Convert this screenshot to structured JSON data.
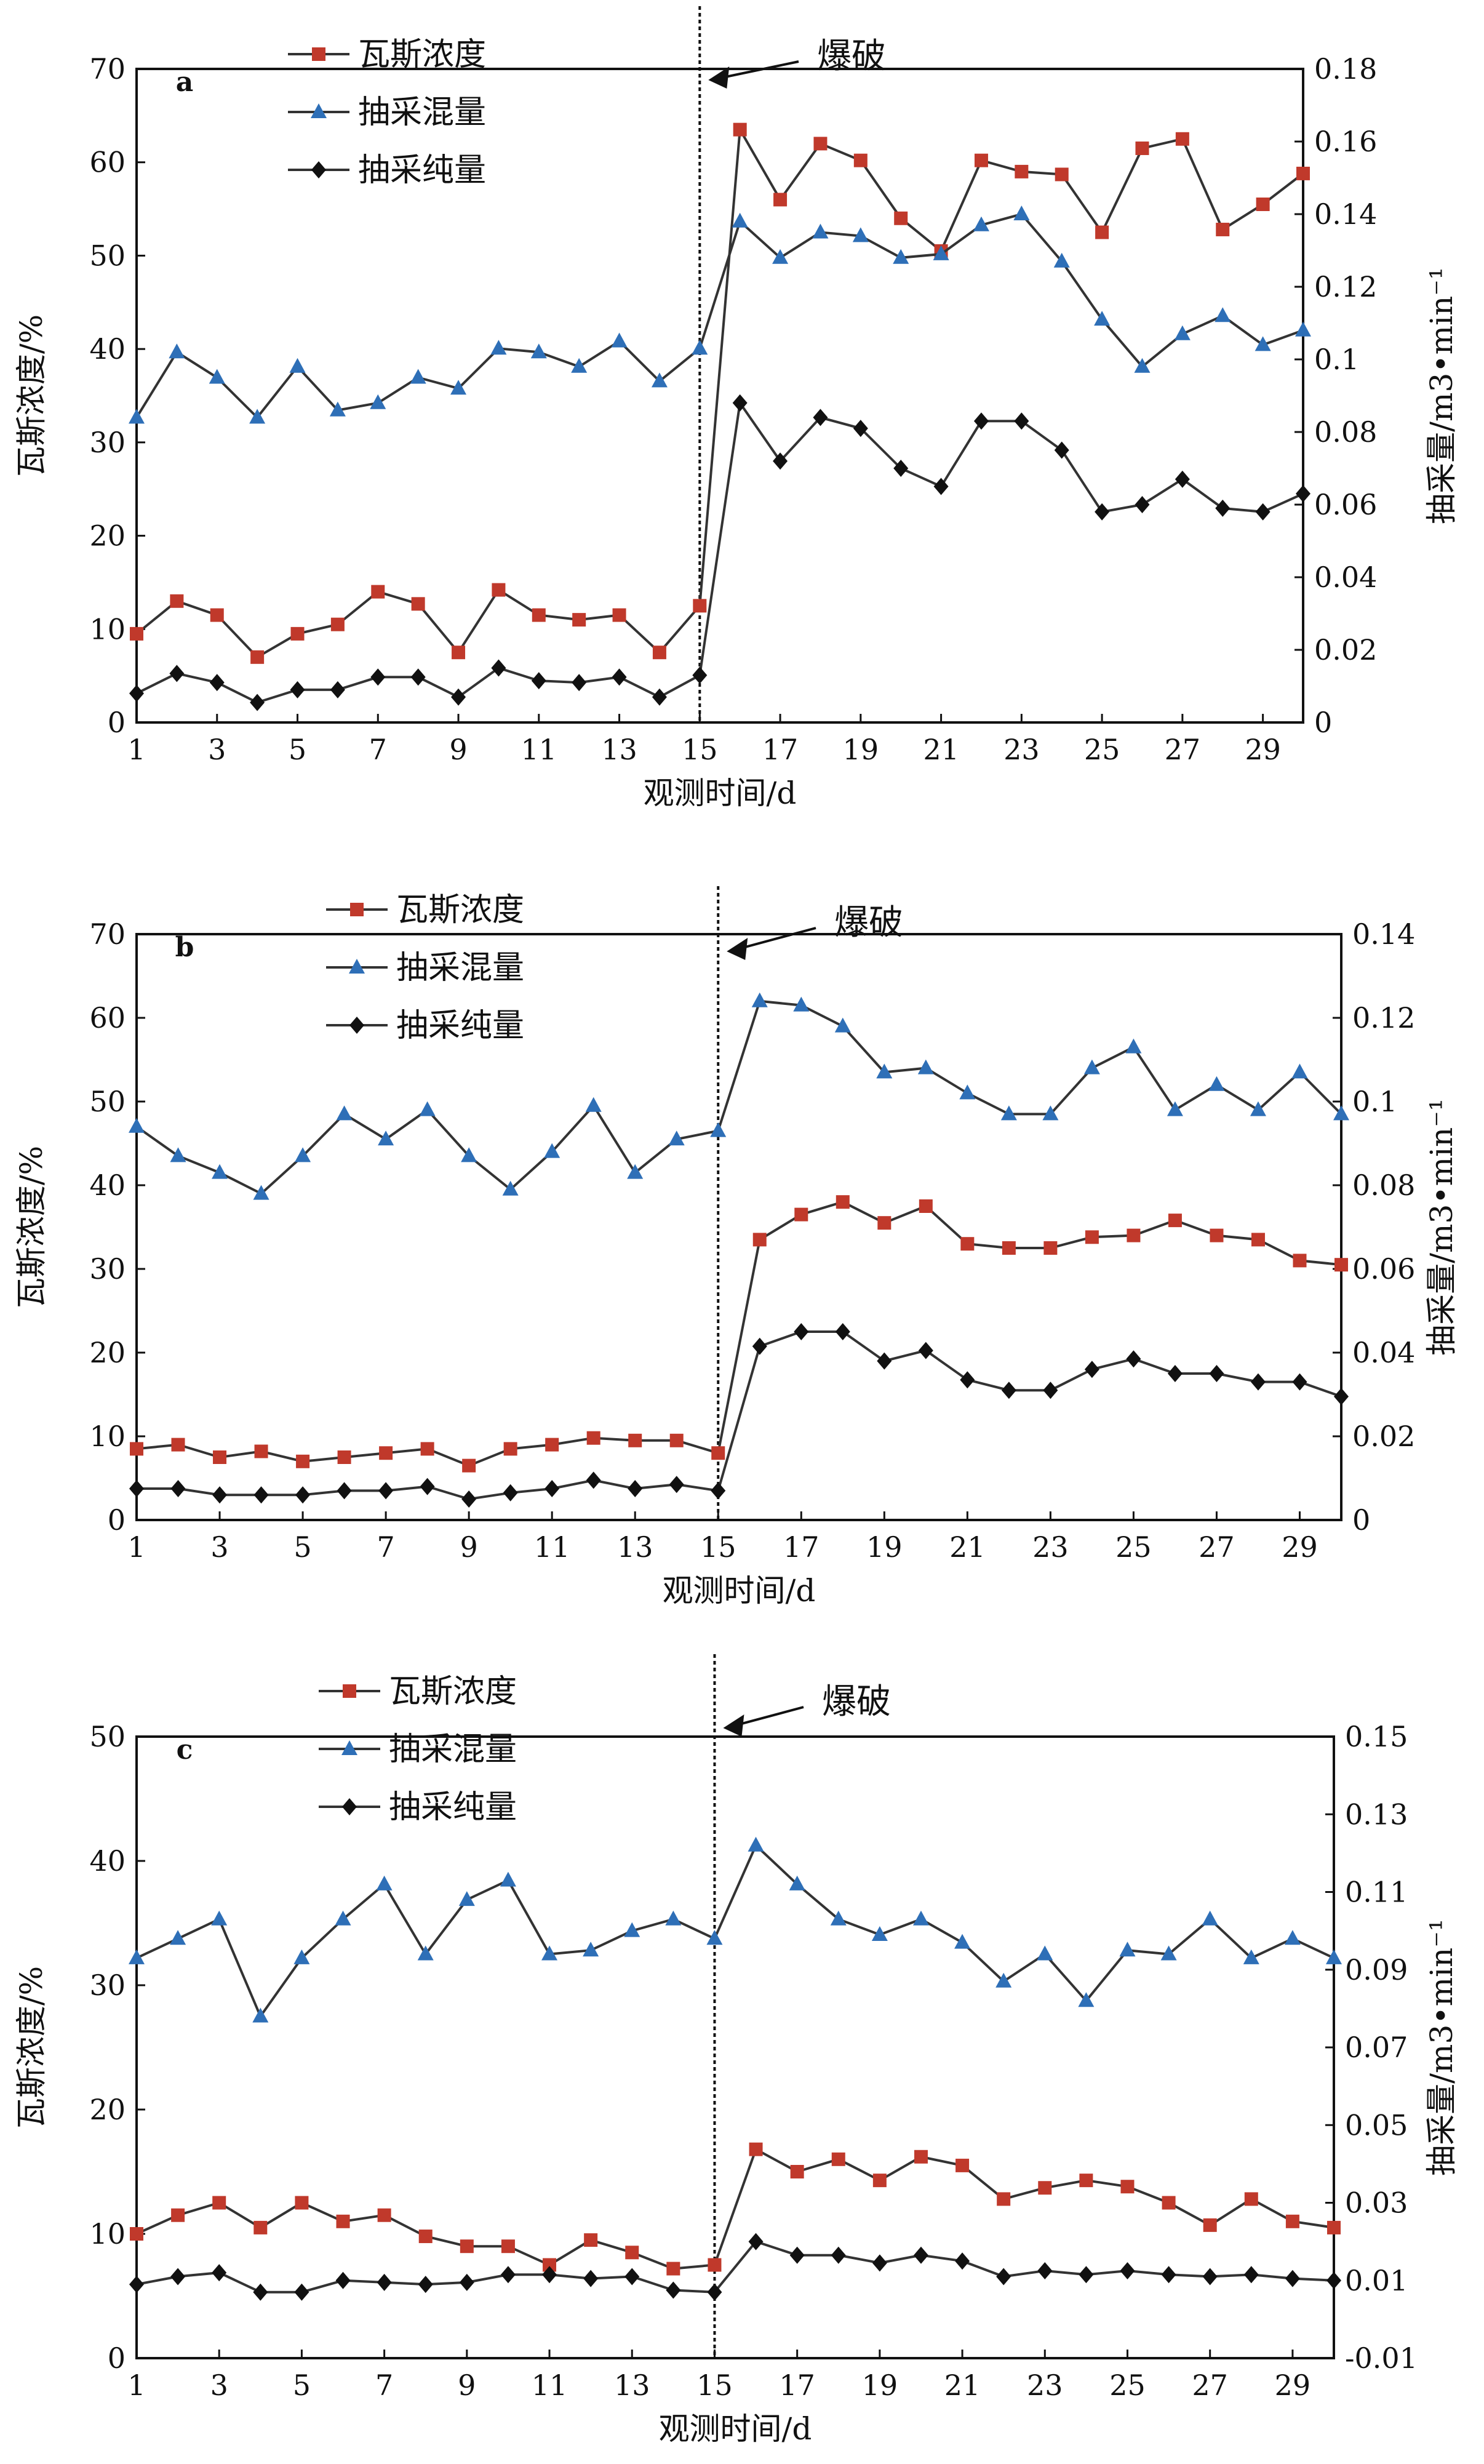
{
  "colors": {
    "concentration": "#c0392b",
    "mixed": "#2e6fb7",
    "pure": "#111111",
    "line": "#333333"
  },
  "chart_data": [
    {
      "type": "line",
      "panel_label": "a",
      "blast_label": "爆破",
      "blast_x": 15,
      "xlabel": "观测时间/d",
      "ylabel_left": "瓦斯浓度/%",
      "ylabel_right": "抽采量/m3•min⁻¹",
      "x": [
        1,
        2,
        3,
        4,
        5,
        6,
        7,
        8,
        9,
        10,
        11,
        12,
        13,
        14,
        15,
        16,
        17,
        18,
        19,
        20,
        21,
        22,
        23,
        24,
        25,
        26,
        27,
        28,
        29,
        30
      ],
      "x_ticks": [
        1,
        3,
        5,
        7,
        9,
        11,
        13,
        15,
        17,
        19,
        21,
        23,
        25,
        27,
        29
      ],
      "ylim_left": [
        0,
        70
      ],
      "yticks_left": [
        "0",
        "10",
        "20",
        "30",
        "40",
        "50",
        "60",
        "70"
      ],
      "ylim_right": [
        0,
        0.18
      ],
      "yticks_right": [
        "0",
        "0.02",
        "0.04",
        "0.06",
        "0.08",
        "0.1",
        "0.12",
        "0.14",
        "0.16",
        "0.18"
      ],
      "series": [
        {
          "name": "瓦斯浓度",
          "axis": "left",
          "marker": "square",
          "values": [
            9.5,
            13,
            11.5,
            7,
            9.5,
            10.5,
            14,
            12.7,
            7.5,
            14.2,
            11.5,
            11,
            11.5,
            7.5,
            12.5,
            63.5,
            56,
            62,
            60.2,
            54,
            50.5,
            60.2,
            59,
            58.7,
            52.5,
            61.5,
            62.5,
            52.8,
            55.5,
            58.8
          ]
        },
        {
          "name": "抽采混量",
          "axis": "right",
          "marker": "triangle",
          "values": [
            0.084,
            0.102,
            0.095,
            0.084,
            0.098,
            0.086,
            0.088,
            0.095,
            0.092,
            0.103,
            0.102,
            0.098,
            0.105,
            0.094,
            0.103,
            0.138,
            0.128,
            0.135,
            0.134,
            0.128,
            0.129,
            0.137,
            0.14,
            0.127,
            0.111,
            0.098,
            0.107,
            0.112,
            0.104,
            0.108
          ]
        },
        {
          "name": "抽采纯量",
          "axis": "right",
          "marker": "diamond",
          "values": [
            0.008,
            0.0135,
            0.011,
            0.0055,
            0.009,
            0.009,
            0.0125,
            0.0125,
            0.007,
            0.015,
            0.0115,
            0.011,
            0.0125,
            0.007,
            0.013,
            0.088,
            0.072,
            0.084,
            0.081,
            0.07,
            0.065,
            0.083,
            0.083,
            0.075,
            0.058,
            0.06,
            0.067,
            0.059,
            0.058,
            0.063
          ]
        }
      ]
    },
    {
      "type": "line",
      "panel_label": "b",
      "blast_label": "爆破",
      "blast_x": 15,
      "xlabel": "观测时间/d",
      "ylabel_left": "瓦斯浓度/%",
      "ylabel_right": "抽采量/m3•min⁻¹",
      "x": [
        1,
        2,
        3,
        4,
        5,
        6,
        7,
        8,
        9,
        10,
        11,
        12,
        13,
        14,
        15,
        16,
        17,
        18,
        19,
        20,
        21,
        22,
        23,
        24,
        25,
        26,
        27,
        28,
        29,
        30
      ],
      "x_ticks": [
        1,
        3,
        5,
        7,
        9,
        11,
        13,
        15,
        17,
        19,
        21,
        23,
        25,
        27,
        29
      ],
      "ylim_left": [
        0,
        70
      ],
      "yticks_left": [
        "0",
        "10",
        "20",
        "30",
        "40",
        "50",
        "60",
        "70"
      ],
      "ylim_right": [
        0,
        0.14
      ],
      "yticks_right": [
        "0",
        "0.02",
        "0.04",
        "0.06",
        "0.08",
        "0.1",
        "0.12",
        "0.14"
      ],
      "series": [
        {
          "name": "瓦斯浓度",
          "axis": "left",
          "marker": "square",
          "values": [
            8.5,
            9,
            7.5,
            8.2,
            7,
            7.5,
            8,
            8.5,
            6.5,
            8.5,
            9,
            9.8,
            9.5,
            9.5,
            8,
            33.5,
            36.5,
            38,
            35.5,
            37.5,
            33,
            32.5,
            32.5,
            33.8,
            34,
            35.8,
            34,
            33.5,
            31,
            30.5
          ]
        },
        {
          "name": "抽采混量",
          "axis": "right",
          "marker": "triangle",
          "values": [
            0.094,
            0.087,
            0.083,
            0.078,
            0.087,
            0.097,
            0.091,
            0.098,
            0.087,
            0.079,
            0.088,
            0.099,
            0.083,
            0.091,
            0.093,
            0.124,
            0.123,
            0.118,
            0.107,
            0.108,
            0.102,
            0.097,
            0.097,
            0.108,
            0.113,
            0.098,
            0.104,
            0.098,
            0.107,
            0.097
          ]
        },
        {
          "name": "抽采纯量",
          "axis": "right",
          "marker": "diamond",
          "values": [
            0.0075,
            0.0075,
            0.006,
            0.006,
            0.006,
            0.007,
            0.007,
            0.008,
            0.005,
            0.0065,
            0.0075,
            0.0095,
            0.0075,
            0.0085,
            0.007,
            0.0415,
            0.045,
            0.045,
            0.038,
            0.0405,
            0.0335,
            0.031,
            0.031,
            0.036,
            0.0385,
            0.035,
            0.035,
            0.033,
            0.033,
            0.0295
          ]
        }
      ]
    },
    {
      "type": "line",
      "panel_label": "c",
      "blast_label": "爆破",
      "blast_x": 15,
      "xlabel": "观测时间/d",
      "ylabel_left": "瓦斯浓度/%",
      "ylabel_right": "抽采量/m3•min⁻¹",
      "x": [
        1,
        2,
        3,
        4,
        5,
        6,
        7,
        8,
        9,
        10,
        11,
        12,
        13,
        14,
        15,
        16,
        17,
        18,
        19,
        20,
        21,
        22,
        23,
        24,
        25,
        26,
        27,
        28,
        29,
        30
      ],
      "x_ticks": [
        1,
        3,
        5,
        7,
        9,
        11,
        13,
        15,
        17,
        19,
        21,
        23,
        25,
        27,
        29
      ],
      "ylim_left": [
        0,
        50
      ],
      "yticks_left": [
        "0",
        "10",
        "20",
        "30",
        "40",
        "50"
      ],
      "ylim_right": [
        -0.01,
        0.15
      ],
      "yticks_right": [
        "-0.01",
        "0.01",
        "0.03",
        "0.05",
        "0.07",
        "0.09",
        "0.11",
        "0.13",
        "0.15"
      ],
      "series": [
        {
          "name": "瓦斯浓度",
          "axis": "left",
          "marker": "square",
          "values": [
            10,
            11.5,
            12.5,
            10.5,
            12.5,
            11,
            11.5,
            9.8,
            9,
            9,
            7.5,
            9.5,
            8.5,
            7.2,
            7.5,
            16.8,
            15,
            16,
            14.3,
            16.2,
            15.5,
            12.8,
            13.7,
            14.3,
            13.8,
            12.5,
            10.7,
            12.8,
            11,
            10.5
          ]
        },
        {
          "name": "抽采混量",
          "axis": "right",
          "marker": "triangle",
          "values": [
            0.093,
            0.098,
            0.103,
            0.078,
            0.093,
            0.103,
            0.112,
            0.094,
            0.108,
            0.113,
            0.094,
            0.095,
            0.1,
            0.103,
            0.098,
            0.122,
            0.112,
            0.103,
            0.099,
            0.103,
            0.097,
            0.087,
            0.094,
            0.082,
            0.095,
            0.094,
            0.103,
            0.093,
            0.098,
            0.093
          ]
        },
        {
          "name": "抽采纯量",
          "axis": "right",
          "marker": "diamond",
          "values": [
            0.009,
            0.011,
            0.012,
            0.007,
            0.007,
            0.01,
            0.0095,
            0.009,
            0.0095,
            0.0115,
            0.0115,
            0.0105,
            0.011,
            0.0075,
            0.007,
            0.02,
            0.0165,
            0.0165,
            0.0145,
            0.0165,
            0.015,
            0.011,
            0.0125,
            0.0115,
            0.0125,
            0.0115,
            0.011,
            0.0115,
            0.0105,
            0.01
          ]
        }
      ]
    }
  ]
}
